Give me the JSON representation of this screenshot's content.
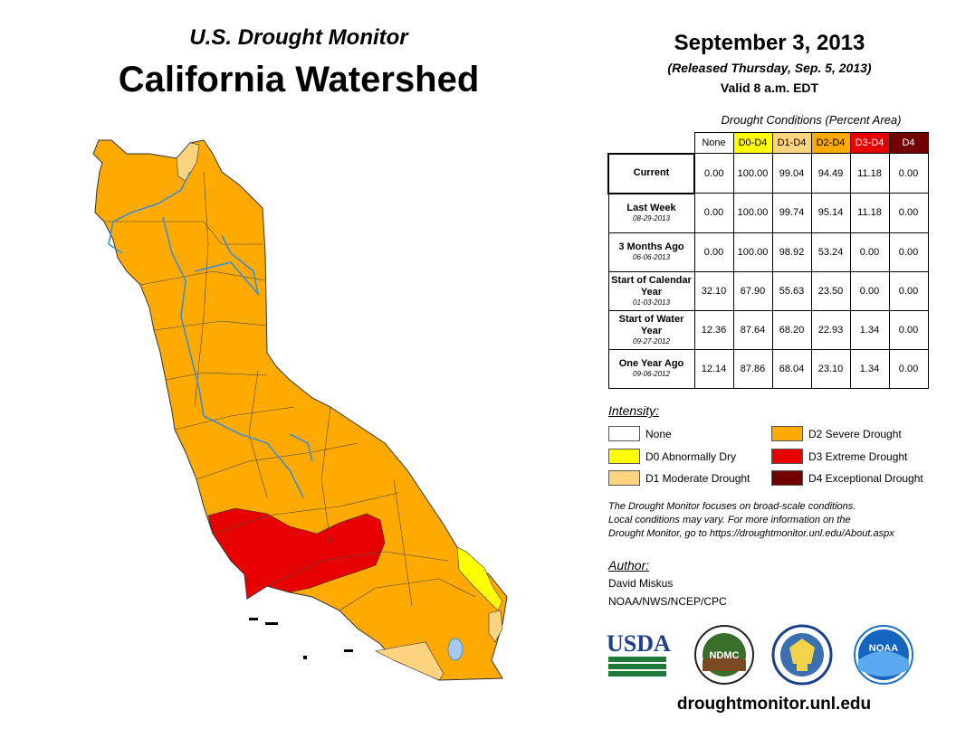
{
  "header": {
    "subtitle": "U.S. Drought Monitor",
    "title": "California Watershed",
    "date": "September 3, 2013",
    "released": "(Released Thursday, Sep. 5, 2013)",
    "valid": "Valid 8 a.m. EDT"
  },
  "table": {
    "caption": "Drought Conditions (Percent Area)",
    "columns": [
      {
        "label": "None",
        "color": "#ffffff",
        "text_color": "#000000"
      },
      {
        "label": "D0-D4",
        "color": "#ffff00",
        "text_color": "#000000"
      },
      {
        "label": "D1-D4",
        "color": "#fcd37f",
        "text_color": "#000000"
      },
      {
        "label": "D2-D4",
        "color": "#ffaa00",
        "text_color": "#000000"
      },
      {
        "label": "D3-D4",
        "color": "#e60000",
        "text_color": "#ffffff"
      },
      {
        "label": "D4",
        "color": "#730000",
        "text_color": "#ffffff"
      }
    ],
    "rows": [
      {
        "label": "Current",
        "date": "",
        "values": [
          "0.00",
          "100.00",
          "99.04",
          "94.49",
          "11.18",
          "0.00"
        ]
      },
      {
        "label": "Last Week",
        "date": "08-29-2013",
        "values": [
          "0.00",
          "100.00",
          "99.74",
          "95.14",
          "11.18",
          "0.00"
        ]
      },
      {
        "label": "3 Months Ago",
        "date": "06-06-2013",
        "values": [
          "0.00",
          "100.00",
          "98.92",
          "53.24",
          "0.00",
          "0.00"
        ]
      },
      {
        "label": "Start of Calendar Year",
        "date": "01-03-2013",
        "values": [
          "32.10",
          "67.90",
          "55.63",
          "23.50",
          "0.00",
          "0.00"
        ]
      },
      {
        "label": "Start of Water Year",
        "date": "09-27-2012",
        "values": [
          "12.36",
          "87.64",
          "68.20",
          "22.93",
          "1.34",
          "0.00"
        ]
      },
      {
        "label": "One Year Ago",
        "date": "09-06-2012",
        "values": [
          "12.14",
          "87.86",
          "68.04",
          "23.10",
          "1.34",
          "0.00"
        ]
      }
    ]
  },
  "legend": {
    "title": "Intensity:",
    "items": [
      {
        "label": "None",
        "color": "#ffffff"
      },
      {
        "label": "D0 Abnormally Dry",
        "color": "#ffff00"
      },
      {
        "label": "D1 Moderate Drought",
        "color": "#fcd37f"
      },
      {
        "label": "D2 Severe Drought",
        "color": "#ffaa00"
      },
      {
        "label": "D3 Extreme Drought",
        "color": "#e60000"
      },
      {
        "label": "D4 Exceptional Drought",
        "color": "#730000"
      }
    ]
  },
  "note": {
    "line1": "The Drought Monitor focuses on broad-scale conditions.",
    "line2": "Local conditions may vary. For more information on the",
    "line3": "Drought Monitor, go to https://droughtmonitor.unl.edu/About.aspx"
  },
  "author": {
    "title": "Author:",
    "name": "David Miskus",
    "org": "NOAA/NWS/NCEP/CPC"
  },
  "logos": {
    "usda": "USDA",
    "ndmc": "NDMC",
    "noaa": "NOAA"
  },
  "website": "droughtmonitor.unl.edu"
}
